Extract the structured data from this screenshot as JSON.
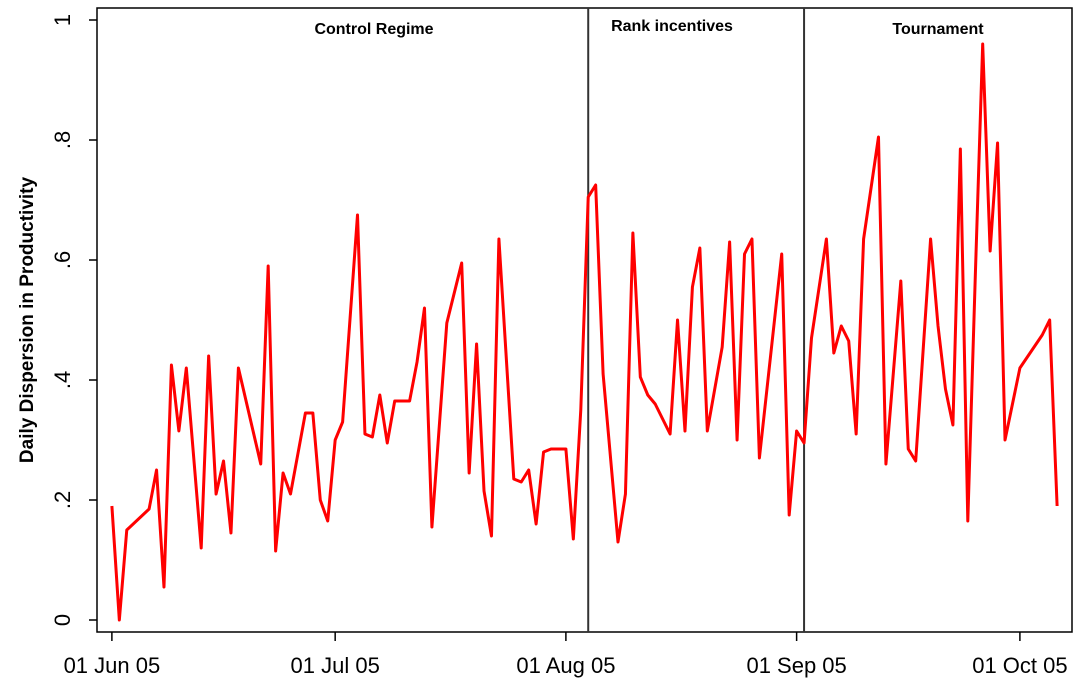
{
  "chart_data": {
    "type": "line",
    "y_label": "Daily Dispersion in Productivity",
    "annotations": [
      "Control Regime",
      "Rank incentives",
      "Tournament"
    ],
    "vlines": [
      "2005-08-04",
      "2005-09-02"
    ],
    "vline_color": "#333333",
    "x": [
      "2005-06-01",
      "2005-06-02",
      "2005-06-03",
      "2005-06-06",
      "2005-06-07",
      "2005-06-08",
      "2005-06-09",
      "2005-06-10",
      "2005-06-11",
      "2005-06-13",
      "2005-06-14",
      "2005-06-15",
      "2005-06-16",
      "2005-06-17",
      "2005-06-18",
      "2005-06-21",
      "2005-06-22",
      "2005-06-23",
      "2005-06-24",
      "2005-06-25",
      "2005-06-27",
      "2005-06-28",
      "2005-06-29",
      "2005-06-30",
      "2005-07-01",
      "2005-07-02",
      "2005-07-04",
      "2005-07-05",
      "2005-07-06",
      "2005-07-07",
      "2005-07-08",
      "2005-07-09",
      "2005-07-11",
      "2005-07-12",
      "2005-07-13",
      "2005-07-14",
      "2005-07-16",
      "2005-07-18",
      "2005-07-19",
      "2005-07-20",
      "2005-07-21",
      "2005-07-22",
      "2005-07-23",
      "2005-07-25",
      "2005-07-26",
      "2005-07-27",
      "2005-07-28",
      "2005-07-29",
      "2005-07-30",
      "2005-08-01",
      "2005-08-02",
      "2005-08-03",
      "2005-08-04",
      "2005-08-05",
      "2005-08-06",
      "2005-08-08",
      "2005-08-09",
      "2005-08-10",
      "2005-08-11",
      "2005-08-12",
      "2005-08-13",
      "2005-08-15",
      "2005-08-16",
      "2005-08-17",
      "2005-08-18",
      "2005-08-19",
      "2005-08-20",
      "2005-08-22",
      "2005-08-23",
      "2005-08-24",
      "2005-08-25",
      "2005-08-26",
      "2005-08-27",
      "2005-08-30",
      "2005-08-31",
      "2005-09-01",
      "2005-09-02",
      "2005-09-03",
      "2005-09-05",
      "2005-09-06",
      "2005-09-07",
      "2005-09-08",
      "2005-09-09",
      "2005-09-10",
      "2005-09-12",
      "2005-09-13",
      "2005-09-15",
      "2005-09-16",
      "2005-09-17",
      "2005-09-19",
      "2005-09-20",
      "2005-09-21",
      "2005-09-22",
      "2005-09-23",
      "2005-09-24",
      "2005-09-25",
      "2005-09-26",
      "2005-09-27",
      "2005-09-28",
      "2005-09-29",
      "2005-10-01",
      "2005-10-04",
      "2005-10-05",
      "2005-10-06"
    ],
    "series": [
      {
        "name": "Daily dispersion",
        "color": "#ff0000",
        "values": [
          0.19,
          0,
          0.15,
          0.185,
          0.25,
          0.055,
          0.425,
          0.315,
          0.42,
          0.12,
          0.44,
          0.21,
          0.265,
          0.145,
          0.42,
          0.26,
          0.59,
          0.115,
          0.245,
          0.21,
          0.345,
          0.345,
          0.2,
          0.165,
          0.3,
          0.33,
          0.675,
          0.31,
          0.305,
          0.375,
          0.295,
          0.365,
          0.365,
          0.43,
          0.52,
          0.155,
          0.495,
          0.595,
          0.245,
          0.46,
          0.215,
          0.14,
          0.635,
          0.235,
          0.23,
          0.25,
          0.16,
          0.28,
          0.285,
          0.285,
          0.135,
          0.35,
          0.705,
          0.725,
          0.41,
          0.13,
          0.21,
          0.645,
          0.405,
          0.375,
          0.36,
          0.31,
          0.5,
          0.315,
          0.555,
          0.62,
          0.315,
          0.455,
          0.63,
          0.3,
          0.61,
          0.635,
          0.27,
          0.61,
          0.175,
          0.315,
          0.295,
          0.47,
          0.635,
          0.445,
          0.49,
          0.465,
          0.31,
          0.635,
          0.805,
          0.26,
          0.565,
          0.285,
          0.265,
          0.635,
          0.49,
          0.385,
          0.325,
          0.785,
          0.165,
          0.57,
          0.96,
          0.615,
          0.795,
          0.3,
          0.42,
          0.475,
          0.5,
          0.19
        ]
      }
    ],
    "xlim": [
      "2005-05-30",
      "2005-10-08"
    ],
    "xticks": [
      {
        "value": "2005-06-01",
        "label": "01 Jun 05"
      },
      {
        "value": "2005-07-01",
        "label": "01 Jul 05"
      },
      {
        "value": "2005-08-01",
        "label": "01 Aug 05"
      },
      {
        "value": "2005-09-01",
        "label": "01 Sep 05"
      },
      {
        "value": "2005-10-01",
        "label": "01 Oct 05"
      }
    ],
    "ylim": [
      -0.02,
      1.02
    ],
    "yticks": [
      0,
      {
        "value": 0.2,
        "label": ".2"
      },
      {
        "value": 0.4,
        "label": ".4"
      },
      {
        "value": 0.6,
        "label": ".6"
      },
      {
        "value": 0.8,
        "label": ".8"
      },
      1
    ]
  }
}
